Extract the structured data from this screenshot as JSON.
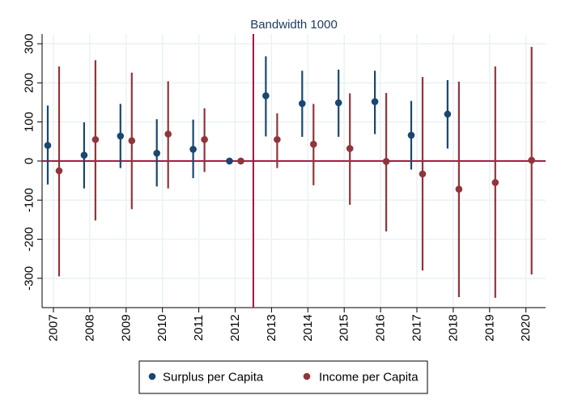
{
  "chart_data": {
    "type": "scatter",
    "subtype": "coefficient-plot-with-confidence-intervals",
    "title": "Bandwidth 1000",
    "xlabel": "",
    "ylabel": "",
    "categories": [
      "2007",
      "2008",
      "2009",
      "2010",
      "2011",
      "2012",
      "2013",
      "2014",
      "2015",
      "2016",
      "2017",
      "2018",
      "2019",
      "2020"
    ],
    "yticks": [
      -300,
      -200,
      -100,
      0,
      100,
      200,
      300
    ],
    "ylim": [
      -375,
      325
    ],
    "grid": true,
    "reference_lines": {
      "horizontal_y": 0,
      "vertical_between": [
        "2012",
        "2013"
      ]
    },
    "legend_position": "bottom",
    "series": [
      {
        "name": "Surplus per Capita",
        "color": "#1a476f",
        "points": [
          {
            "year": "2007",
            "value": 40,
            "lower": -60,
            "upper": 142
          },
          {
            "year": "2008",
            "value": 15,
            "lower": -70,
            "upper": 99
          },
          {
            "year": "2009",
            "value": 64,
            "lower": -18,
            "upper": 146
          },
          {
            "year": "2010",
            "value": 20,
            "lower": -65,
            "upper": 107
          },
          {
            "year": "2011",
            "value": 30,
            "lower": -44,
            "upper": 106
          },
          {
            "year": "2012",
            "value": 0,
            "lower": 0,
            "upper": 0
          },
          {
            "year": "2013",
            "value": 167,
            "lower": 63,
            "upper": 268
          },
          {
            "year": "2014",
            "value": 147,
            "lower": 62,
            "upper": 231
          },
          {
            "year": "2015",
            "value": 149,
            "lower": 62,
            "upper": 234
          },
          {
            "year": "2016",
            "value": 152,
            "lower": 69,
            "upper": 231
          },
          {
            "year": "2017",
            "value": 66,
            "lower": -22,
            "upper": 154
          },
          {
            "year": "2018",
            "value": 120,
            "lower": 32,
            "upper": 207
          }
        ]
      },
      {
        "name": "Income per Capita",
        "color": "#90353b",
        "points": [
          {
            "year": "2007",
            "value": -25,
            "lower": -295,
            "upper": 242
          },
          {
            "year": "2008",
            "value": 55,
            "lower": -152,
            "upper": 258
          },
          {
            "year": "2009",
            "value": 52,
            "lower": -123,
            "upper": 226
          },
          {
            "year": "2010",
            "value": 69,
            "lower": -70,
            "upper": 204
          },
          {
            "year": "2011",
            "value": 55,
            "lower": -28,
            "upper": 135
          },
          {
            "year": "2012",
            "value": 0,
            "lower": 0,
            "upper": 0
          },
          {
            "year": "2013",
            "value": 55,
            "lower": -18,
            "upper": 122
          },
          {
            "year": "2014",
            "value": 43,
            "lower": -62,
            "upper": 146
          },
          {
            "year": "2015",
            "value": 32,
            "lower": -112,
            "upper": 173
          },
          {
            "year": "2016",
            "value": -1,
            "lower": -180,
            "upper": 174
          },
          {
            "year": "2017",
            "value": -33,
            "lower": -280,
            "upper": 215
          },
          {
            "year": "2018",
            "value": -72,
            "lower": -348,
            "upper": 203
          },
          {
            "year": "2019",
            "value": -55,
            "lower": -350,
            "upper": 242
          },
          {
            "year": "2020",
            "value": 2,
            "lower": -290,
            "upper": 292
          }
        ]
      }
    ]
  }
}
